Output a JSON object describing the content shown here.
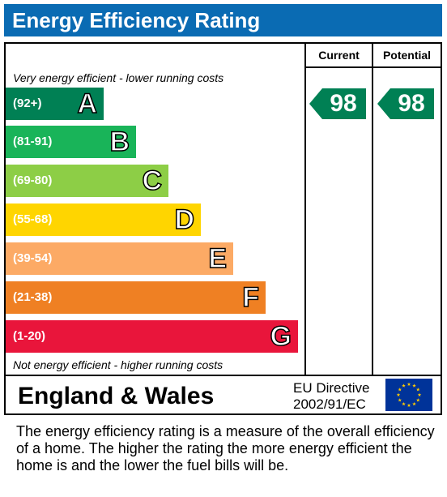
{
  "header": {
    "title": "Energy Efficiency Rating"
  },
  "columns": {
    "current_label": "Current",
    "potential_label": "Potential"
  },
  "captions": {
    "top": "Very energy efficient - lower running costs",
    "bottom": "Not energy efficient - higher running costs"
  },
  "chart_data": {
    "type": "bar",
    "categories": [
      "A",
      "B",
      "C",
      "D",
      "E",
      "F",
      "G"
    ],
    "bands": [
      {
        "letter": "A",
        "range": "(92+)",
        "color": "#008054"
      },
      {
        "letter": "B",
        "range": "(81-91)",
        "color": "#19b459"
      },
      {
        "letter": "C",
        "range": "(69-80)",
        "color": "#8dce46"
      },
      {
        "letter": "D",
        "range": "(55-68)",
        "color": "#ffd500"
      },
      {
        "letter": "E",
        "range": "(39-54)",
        "color": "#fcaa65"
      },
      {
        "letter": "F",
        "range": "(21-38)",
        "color": "#ef8023"
      },
      {
        "letter": "G",
        "range": "(1-20)",
        "color": "#e9153b"
      }
    ],
    "current": {
      "value": "98",
      "band": "A",
      "color": "#008054"
    },
    "potential": {
      "value": "98",
      "band": "A",
      "color": "#008054"
    }
  },
  "footer": {
    "region": "England & Wales",
    "directive_line1": "EU Directive",
    "directive_line2": "2002/91/EC",
    "flag_icon": "eu-flag-icon",
    "flag_color": "#003399",
    "star_color": "#ffcc00"
  },
  "note": "The energy efficiency rating is a measure of the overall efficiency of a home.  The higher the rating the more energy efficient the home is and the lower the fuel bills will be."
}
